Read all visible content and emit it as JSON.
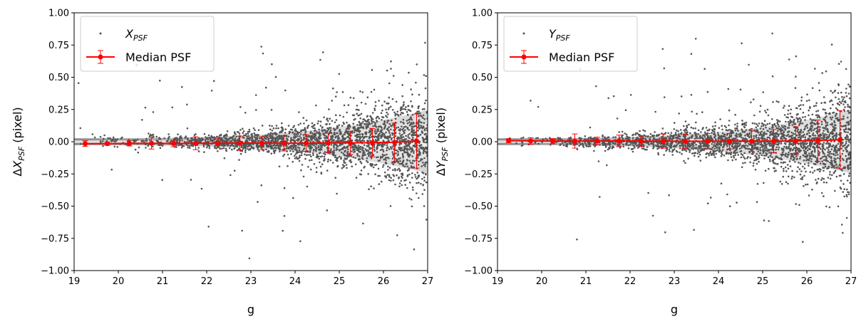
{
  "chart_data": [
    {
      "type": "scatter",
      "panel": "left",
      "xlabel": "g",
      "ylabel": "ΔX_PSF (pixel)",
      "ylabel_parts": {
        "delta": "Δ",
        "var": "X",
        "sub": "PSF",
        "unit": " (pixel)"
      },
      "xlim": [
        19,
        27
      ],
      "ylim": [
        -1.0,
        1.0
      ],
      "xticks": [
        19,
        20,
        21,
        22,
        23,
        24,
        25,
        26,
        27
      ],
      "yticks": [
        -1.0,
        -0.75,
        -0.5,
        -0.25,
        0.0,
        0.25,
        0.5,
        0.75,
        1.0
      ],
      "ytick_labels": [
        "−1.00",
        "−0.75",
        "−0.50",
        "−0.25",
        "0.00",
        "0.25",
        "0.50",
        "0.75",
        "1.00"
      ],
      "legend": {
        "position": "upper-left",
        "scatter_label": {
          "var": "X",
          "sub": "PSF"
        },
        "median_label": "Median PSF"
      },
      "scatter_color": "#555555",
      "median_color": "#ff0000",
      "median": {
        "x": [
          19.25,
          19.75,
          20.25,
          20.75,
          21.25,
          21.75,
          22.25,
          22.75,
          23.25,
          23.75,
          24.25,
          24.75,
          25.25,
          25.75,
          26.25,
          26.75
        ],
        "y": [
          -0.015,
          -0.015,
          -0.013,
          -0.012,
          -0.014,
          -0.012,
          -0.012,
          -0.011,
          -0.011,
          -0.012,
          -0.011,
          -0.01,
          -0.009,
          -0.008,
          -0.005,
          0.005
        ],
        "err": [
          0.022,
          0.013,
          0.02,
          0.045,
          0.025,
          0.05,
          0.035,
          0.055,
          0.05,
          0.06,
          0.065,
          0.075,
          0.09,
          0.11,
          0.15,
          0.21
        ]
      }
    },
    {
      "type": "scatter",
      "panel": "right",
      "xlabel": "g",
      "ylabel": "ΔY_PSF (pixel)",
      "ylabel_parts": {
        "delta": "Δ",
        "var": "Y",
        "sub": "PSF",
        "unit": " (pixel)"
      },
      "xlim": [
        19,
        27
      ],
      "ylim": [
        -1.0,
        1.0
      ],
      "xticks": [
        19,
        20,
        21,
        22,
        23,
        24,
        25,
        26,
        27
      ],
      "yticks": [
        -1.0,
        -0.75,
        -0.5,
        -0.25,
        0.0,
        0.25,
        0.5,
        0.75,
        1.0
      ],
      "ytick_labels": [
        "−1.00",
        "−0.75",
        "−0.50",
        "−0.25",
        "0.00",
        "0.25",
        "0.50",
        "0.75",
        "1.00"
      ],
      "legend": {
        "position": "upper-left",
        "scatter_label": {
          "var": "Y",
          "sub": "PSF"
        },
        "median_label": "Median PSF"
      },
      "scatter_color": "#555555",
      "median_color": "#ff0000",
      "median": {
        "x": [
          19.25,
          19.75,
          20.25,
          20.75,
          21.25,
          21.75,
          22.25,
          22.75,
          23.25,
          23.75,
          24.25,
          24.75,
          25.25,
          25.75,
          26.25,
          26.75
        ],
        "y": [
          0.008,
          0.006,
          0.004,
          0.005,
          0.005,
          0.006,
          0.004,
          0.004,
          0.003,
          0.004,
          0.004,
          0.004,
          0.005,
          0.006,
          0.008,
          0.015
        ],
        "err": [
          0.015,
          0.025,
          0.02,
          0.055,
          0.03,
          0.045,
          0.04,
          0.055,
          0.055,
          0.06,
          0.06,
          0.08,
          0.09,
          0.11,
          0.16,
          0.225
        ]
      }
    }
  ]
}
